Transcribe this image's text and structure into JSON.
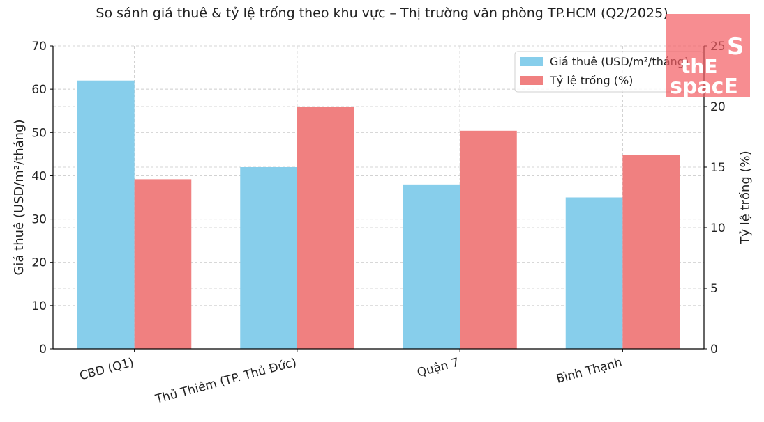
{
  "chart_data": {
    "type": "bar",
    "title": "So sánh giá thuê & tỷ lệ trống theo khu vực – Thị trường văn phòng TP.HCM (Q2/2025)",
    "categories": [
      "CBD (Q1)",
      "Thủ Thiêm (TP. Thủ Đức)",
      "Quận 7",
      "Bình Thạnh"
    ],
    "series": [
      {
        "name": "Giá thuê (USD/m²/tháng)",
        "values": [
          62,
          42,
          38,
          35
        ],
        "axis": "left",
        "color": "#87ceeb"
      },
      {
        "name": "Tỷ lệ trống (%)",
        "values": [
          14,
          20,
          18,
          16
        ],
        "axis": "right",
        "color": "#f08080"
      }
    ],
    "ylabel": "Giá thuê (USD/m²/tháng)",
    "ylabel_right": "Tỷ lệ trống (%)",
    "ylim": [
      0,
      70
    ],
    "ylim_right": [
      0,
      25
    ],
    "yticks": [
      "0",
      "10",
      "20",
      "30",
      "40",
      "50",
      "60",
      "70"
    ],
    "yticks_right": [
      "0",
      "5",
      "10",
      "15",
      "20",
      "25"
    ],
    "grid": true,
    "legend_position": "top-right"
  },
  "logo": {
    "line1": "S",
    "line2": "thE",
    "line3": "spacE"
  }
}
